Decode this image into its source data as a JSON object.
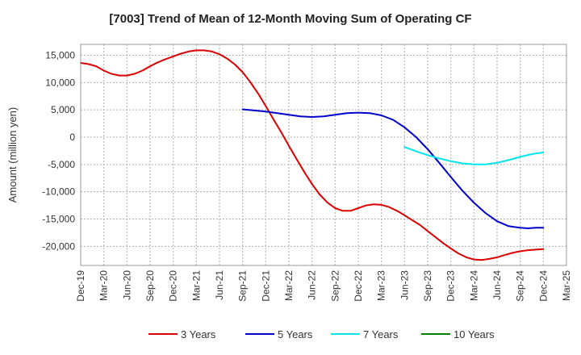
{
  "chart_data": {
    "type": "line",
    "title": "[7003]  Trend of Mean of 12-Month Moving Sum of Operating CF",
    "xlabel": "",
    "ylabel": "Amount (million yen)",
    "ylim": [
      -23500,
      17000
    ],
    "yticks": [
      15000,
      10000,
      5000,
      0,
      -5000,
      -10000,
      -15000,
      -20000
    ],
    "ytick_labels": [
      "15,000",
      "10,000",
      "5,000",
      "0",
      "-5,000",
      "-10,000",
      "-15,000",
      "-20,000"
    ],
    "categories": [
      "Dec-19",
      "Mar-20",
      "Jun-20",
      "Sep-20",
      "Dec-20",
      "Mar-21",
      "Jun-21",
      "Sep-21",
      "Dec-21",
      "Mar-22",
      "Jun-22",
      "Sep-22",
      "Dec-22",
      "Mar-23",
      "Jun-23",
      "Sep-23",
      "Dec-23",
      "Mar-24",
      "Jun-24",
      "Sep-24",
      "Dec-24",
      "Mar-25"
    ],
    "grid": true,
    "legend_position": "bottom",
    "series": [
      {
        "name": "3 Years",
        "color": "#dd0000",
        "x": [
          0,
          0.33,
          0.67,
          1,
          1.33,
          1.67,
          2,
          2.33,
          2.67,
          3,
          3.33,
          3.67,
          4,
          4.33,
          4.67,
          5,
          5.33,
          5.67,
          6,
          6.33,
          6.67,
          7,
          7.33,
          7.67,
          8,
          8.33,
          8.67,
          9,
          9.33,
          9.67,
          10,
          10.33,
          10.67,
          11,
          11.33,
          11.67,
          12,
          12.33,
          12.67,
          13,
          13.33,
          13.67,
          14,
          14.33,
          14.67,
          15,
          15.33,
          15.67,
          16,
          16.33,
          16.67,
          17,
          17.33,
          17.67,
          18,
          18.33,
          18.67,
          19,
          19.33,
          19.67,
          20
        ],
        "values": [
          13600,
          13400,
          13000,
          12200,
          11600,
          11300,
          11300,
          11600,
          12200,
          13000,
          13700,
          14300,
          14800,
          15300,
          15700,
          15900,
          15900,
          15700,
          15200,
          14400,
          13300,
          11900,
          10100,
          8000,
          5700,
          3300,
          900,
          -1600,
          -4000,
          -6400,
          -8600,
          -10500,
          -12000,
          -13000,
          -13500,
          -13500,
          -13000,
          -12500,
          -12300,
          -12400,
          -12800,
          -13500,
          -14300,
          -15200,
          -16100,
          -17200,
          -18300,
          -19400,
          -20400,
          -21300,
          -22000,
          -22400,
          -22500,
          -22300,
          -22000,
          -21600,
          -21200,
          -20900,
          -20700,
          -20600,
          -20500
        ]
      },
      {
        "name": "5 Years",
        "color": "#0000cc",
        "x": [
          7,
          7.5,
          8,
          8.5,
          9,
          9.5,
          10,
          10.5,
          11,
          11.5,
          12,
          12.5,
          13,
          13.5,
          14,
          14.5,
          15,
          15.5,
          16,
          16.5,
          17,
          17.5,
          18,
          18.5,
          19,
          19.33,
          19.67,
          20
        ],
        "values": [
          5100,
          4900,
          4700,
          4400,
          4100,
          3800,
          3700,
          3800,
          4100,
          4400,
          4500,
          4400,
          4000,
          3200,
          1800,
          0,
          -2200,
          -4700,
          -7300,
          -9800,
          -12000,
          -13900,
          -15400,
          -16300,
          -16600,
          -16700,
          -16600,
          -16600
        ]
      },
      {
        "name": "7 Years",
        "color": "#00e5ee",
        "x": [
          14,
          14.5,
          15,
          15.5,
          16,
          16.5,
          17,
          17.5,
          18,
          18.5,
          19,
          19.5,
          20
        ],
        "values": [
          -1800,
          -2600,
          -3300,
          -3900,
          -4400,
          -4800,
          -5000,
          -5000,
          -4700,
          -4200,
          -3600,
          -3100,
          -2800
        ]
      },
      {
        "name": "10 Years",
        "color": "#008000",
        "x": [],
        "values": []
      }
    ]
  }
}
